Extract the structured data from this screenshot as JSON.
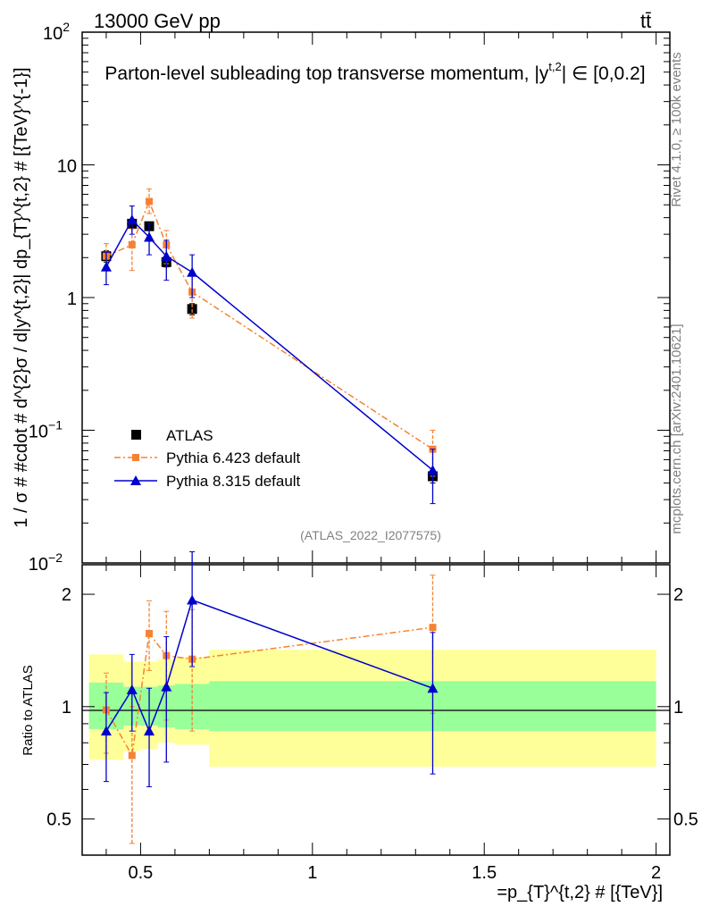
{
  "header": {
    "energy_label": "13000 GeV pp",
    "process_label": "tt̄",
    "title": "Parton-level subleading top transverse momentum, |y",
    "title_sup": "t,2",
    "title_suffix": "| ∈ [0,0.2]"
  },
  "side_labels": {
    "rivet": "Rivet 4.1.0, ≥ 100k events",
    "mcplots": "mcplots.cern.ch [arXiv:2401.10621]"
  },
  "analysis_id": "(ATLAS_2022_I2077575)",
  "colors": {
    "atlas": "#000000",
    "pythia6": "#f58232",
    "pythia8": "#0000cc",
    "band_inner": "#99ff99",
    "band_outer": "#ffff99"
  },
  "chart_data": [
    {
      "type": "scatter",
      "panel": "main",
      "y_scale": "log",
      "ylim": [
        0.01,
        100
      ],
      "xlim": [
        0.33,
        2.04
      ],
      "ylabel": "1 / σ # #cdot # d^{2}σ / d|y^{t,2}| dp_{T}^{t,2} # [{TeV}^{-1}]",
      "yticks": [
        {
          "v": 0.01,
          "base": "10",
          "exp": "−2"
        },
        {
          "v": 0.1,
          "base": "10",
          "exp": "−1"
        },
        {
          "v": 1,
          "base": "1",
          "exp": ""
        },
        {
          "v": 10,
          "base": "10",
          "exp": ""
        },
        {
          "v": 100,
          "base": "10",
          "exp": "2"
        }
      ],
      "series": [
        {
          "name": "ATLAS",
          "style": "marker-square",
          "points": [
            {
              "x": 0.4,
              "y": 2.05,
              "lo": 1.85,
              "hi": 2.25
            },
            {
              "x": 0.475,
              "y": 3.6,
              "lo": 3.35,
              "hi": 3.85
            },
            {
              "x": 0.525,
              "y": 3.45,
              "lo": 3.2,
              "hi": 3.7
            },
            {
              "x": 0.575,
              "y": 1.85,
              "lo": 1.7,
              "hi": 2.0
            },
            {
              "x": 0.65,
              "y": 0.82,
              "lo": 0.74,
              "hi": 0.9
            },
            {
              "x": 1.35,
              "y": 0.045,
              "lo": 0.04,
              "hi": 0.05
            }
          ]
        },
        {
          "name": "Pythia 6.423 default",
          "style": "dashdot-square",
          "points": [
            {
              "x": 0.4,
              "y": 2.05,
              "lo": 1.65,
              "hi": 2.55
            },
            {
              "x": 0.475,
              "y": 2.5,
              "lo": 1.6,
              "hi": 3.3
            },
            {
              "x": 0.525,
              "y": 5.3,
              "lo": 4.3,
              "hi": 6.6
            },
            {
              "x": 0.575,
              "y": 2.5,
              "lo": 1.8,
              "hi": 3.2
            },
            {
              "x": 0.65,
              "y": 1.1,
              "lo": 0.7,
              "hi": 1.5
            },
            {
              "x": 1.35,
              "y": 0.072,
              "lo": 0.045,
              "hi": 0.1
            }
          ]
        },
        {
          "name": "Pythia 8.315 default",
          "style": "solid-triangle",
          "points": [
            {
              "x": 0.4,
              "y": 1.7,
              "lo": 1.25,
              "hi": 2.2
            },
            {
              "x": 0.475,
              "y": 3.85,
              "lo": 3.0,
              "hi": 4.9
            },
            {
              "x": 0.525,
              "y": 2.85,
              "lo": 2.1,
              "hi": 3.6
            },
            {
              "x": 0.575,
              "y": 2.05,
              "lo": 1.35,
              "hi": 2.7
            },
            {
              "x": 0.65,
              "y": 1.55,
              "lo": 1.0,
              "hi": 2.1
            },
            {
              "x": 1.35,
              "y": 0.05,
              "lo": 0.028,
              "hi": 0.072
            }
          ]
        }
      ]
    },
    {
      "type": "scatter",
      "panel": "ratio",
      "ylabel": "Ratio to ATLAS",
      "xlabel": "=p_{T}^{t,2} # [{TeV}]",
      "ylim": [
        0.4,
        2.4
      ],
      "y_scale": "log",
      "yticks_left": [
        {
          "v": 0.5,
          "label": "0.5"
        },
        {
          "v": 1,
          "label": "1"
        },
        {
          "v": 2,
          "label": "2"
        }
      ],
      "yticks_right": [
        {
          "v": 0.5,
          "label": "0.5"
        },
        {
          "v": 1,
          "label": "1"
        },
        {
          "v": 2,
          "label": "2"
        }
      ],
      "xticks": [
        {
          "v": 0.5,
          "label": "0.5"
        },
        {
          "v": 1,
          "label": "1"
        },
        {
          "v": 1.5,
          "label": "1.5"
        },
        {
          "v": 2,
          "label": "2"
        }
      ],
      "bands": [
        {
          "x0": 0.35,
          "x1": 0.45,
          "inner": [
            0.87,
            1.16
          ],
          "outer": [
            0.72,
            1.38
          ]
        },
        {
          "x0": 0.45,
          "x1": 0.5,
          "inner": [
            0.89,
            1.13
          ],
          "outer": [
            0.76,
            1.32
          ]
        },
        {
          "x0": 0.5,
          "x1": 0.55,
          "inner": [
            0.89,
            1.13
          ],
          "outer": [
            0.77,
            1.32
          ]
        },
        {
          "x0": 0.55,
          "x1": 0.6,
          "inner": [
            0.88,
            1.14
          ],
          "outer": [
            0.8,
            1.34
          ]
        },
        {
          "x0": 0.6,
          "x1": 0.7,
          "inner": [
            0.87,
            1.15
          ],
          "outer": [
            0.79,
            1.36
          ]
        },
        {
          "x0": 0.7,
          "x1": 2.0,
          "inner": [
            0.86,
            1.17
          ],
          "outer": [
            0.69,
            1.42
          ]
        }
      ],
      "series": [
        {
          "name": "Pythia 6.423 default",
          "points": [
            {
              "x": 0.4,
              "y": 0.98,
              "lo": 0.75,
              "hi": 1.23
            },
            {
              "x": 0.475,
              "y": 0.74,
              "lo": 0.43,
              "hi": 1.0
            },
            {
              "x": 0.525,
              "y": 1.57,
              "lo": 1.25,
              "hi": 1.92
            },
            {
              "x": 0.575,
              "y": 1.37,
              "lo": 0.92,
              "hi": 1.8
            },
            {
              "x": 0.65,
              "y": 1.34,
              "lo": 0.86,
              "hi": 1.82
            },
            {
              "x": 1.35,
              "y": 1.63,
              "lo": 0.96,
              "hi": 2.25
            }
          ]
        },
        {
          "name": "Pythia 8.315 default",
          "points": [
            {
              "x": 0.4,
              "y": 0.86,
              "lo": 0.63,
              "hi": 1.09
            },
            {
              "x": 0.475,
              "y": 1.11,
              "lo": 0.86,
              "hi": 1.38
            },
            {
              "x": 0.525,
              "y": 0.86,
              "lo": 0.61,
              "hi": 1.12
            },
            {
              "x": 0.575,
              "y": 1.13,
              "lo": 0.71,
              "hi": 1.54
            },
            {
              "x": 0.65,
              "y": 1.93,
              "lo": 1.28,
              "hi": 2.6
            },
            {
              "x": 1.35,
              "y": 1.12,
              "lo": 0.66,
              "hi": 1.58
            }
          ]
        }
      ]
    }
  ]
}
